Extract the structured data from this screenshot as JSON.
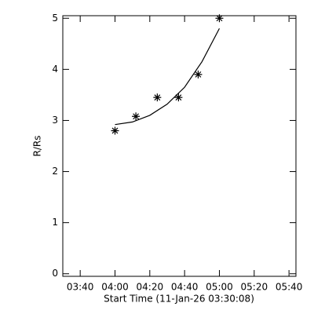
{
  "chart_data": {
    "type": "scatter",
    "x_label": "Start Time (11-Jan-26 03:30:08)",
    "y_label": "R/Rs",
    "xlim": [
      210,
      344
    ],
    "ylim": [
      -0.05,
      5.05
    ],
    "xticks": [
      {
        "value": 220,
        "label": "03:40"
      },
      {
        "value": 240,
        "label": "04:00"
      },
      {
        "value": 260,
        "label": "04:20"
      },
      {
        "value": 280,
        "label": "04:40"
      },
      {
        "value": 300,
        "label": "05:00"
      },
      {
        "value": 320,
        "label": "05:20"
      },
      {
        "value": 340,
        "label": "05:40"
      }
    ],
    "yticks": [
      0,
      1,
      2,
      3,
      4,
      5
    ],
    "series": [
      {
        "kind": "points",
        "color": "#000000",
        "x": [
          240,
          252,
          264.3,
          276.5,
          287.8,
          300
        ],
        "values": [
          2.8,
          3.08,
          3.45,
          3.45,
          3.9,
          5.0
        ]
      },
      {
        "kind": "line",
        "color": "#000000",
        "x": [
          240,
          250,
          260,
          270,
          280,
          290,
          300
        ],
        "values": [
          2.92,
          2.97,
          3.1,
          3.32,
          3.65,
          4.15,
          4.8
        ]
      }
    ]
  }
}
